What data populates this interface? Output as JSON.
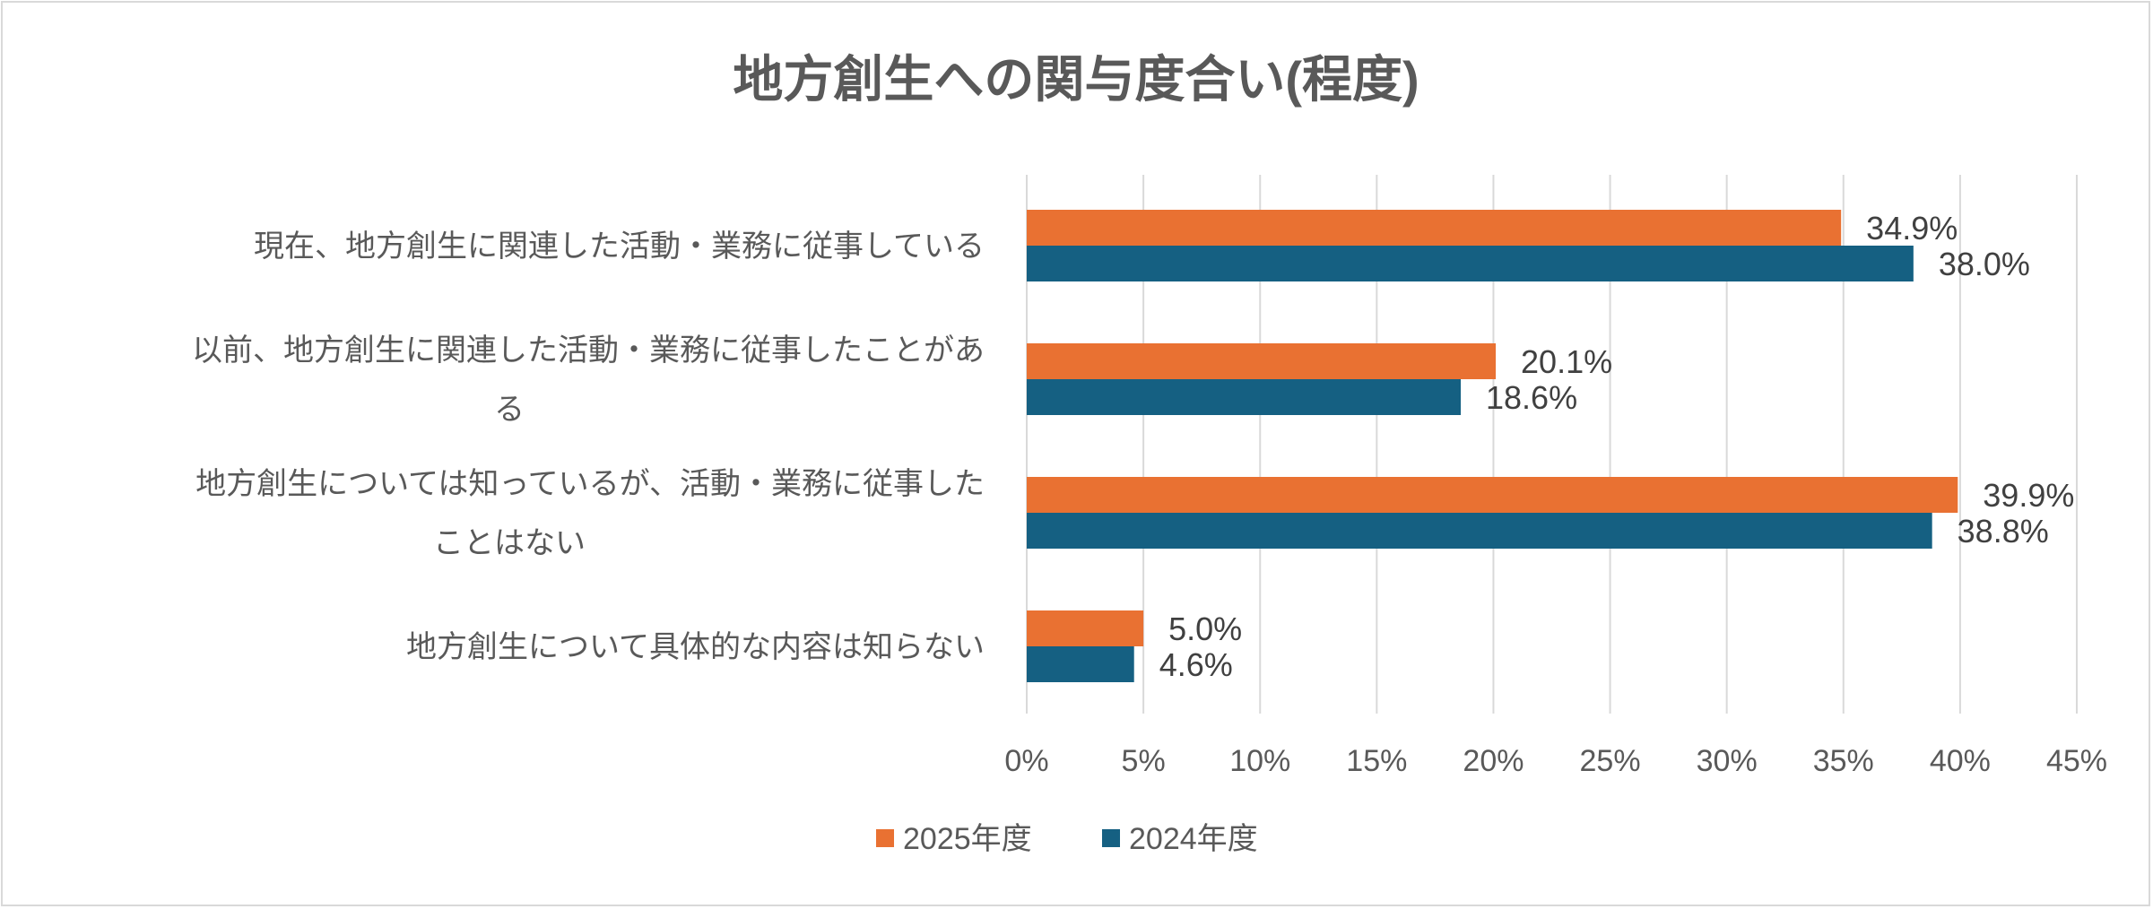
{
  "chart_data": {
    "type": "bar",
    "orientation": "horizontal",
    "title": "地方創生への関与度合い(程度)",
    "categories": [
      [
        "現在、地方創生に関連した活動・業務に従事している"
      ],
      [
        "以前、地方創生に関連した活動・業務に従事したことがあ",
        "る"
      ],
      [
        "地方創生については知っているが、活動・業務に従事した",
        "ことはない"
      ],
      [
        "地方創生について具体的な内容は知らない"
      ]
    ],
    "series": [
      {
        "name": "2025年度",
        "color": "#E97132",
        "values": [
          34.9,
          20.1,
          39.9,
          5.0
        ],
        "labels": [
          "34.9%",
          "20.1%",
          "39.9%",
          "5.0%"
        ]
      },
      {
        "name": "2024年度",
        "color": "#156082",
        "values": [
          38.0,
          18.6,
          38.8,
          4.6
        ],
        "labels": [
          "38.0%",
          "18.6%",
          "38.8%",
          "4.6%"
        ]
      }
    ],
    "xlim": [
      0,
      45
    ],
    "xticks": [
      "0%",
      "5%",
      "10%",
      "15%",
      "20%",
      "25%",
      "30%",
      "35%",
      "40%",
      "45%"
    ],
    "grid": true,
    "legend": "bottom",
    "xlabel": "",
    "ylabel": ""
  }
}
